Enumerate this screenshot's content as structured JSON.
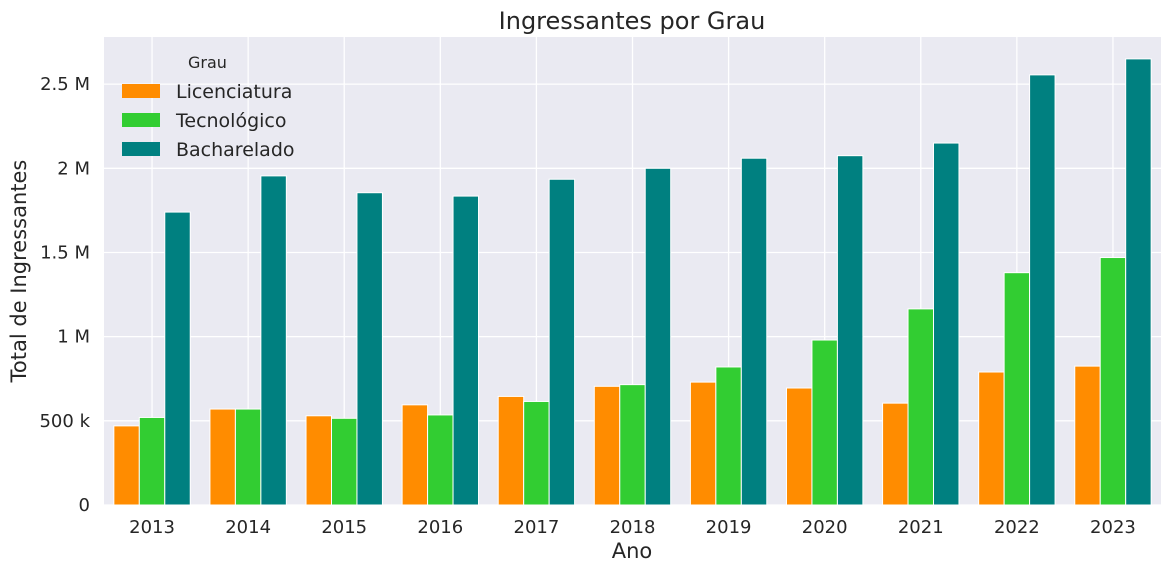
{
  "chart_data": {
    "type": "bar",
    "title": "Ingressantes por Grau",
    "xlabel": "Ano",
    "ylabel": "Total de Ingressantes",
    "categories": [
      "2013",
      "2014",
      "2015",
      "2016",
      "2017",
      "2018",
      "2019",
      "2020",
      "2021",
      "2022",
      "2023"
    ],
    "ylim": [
      0,
      2780000
    ],
    "yticks": [
      0,
      500000,
      1000000,
      1500000,
      2000000,
      2500000
    ],
    "ytick_labels": [
      "0",
      "500 k",
      "1 M",
      "1.5 M",
      "2 M",
      "2.5 M"
    ],
    "grid": true,
    "legend": {
      "title": "Grau",
      "placement": "top-left"
    },
    "series": [
      {
        "name": "Licenciatura",
        "color": "#ff8c00",
        "values": [
          470000,
          570000,
          530000,
          595000,
          645000,
          705000,
          730000,
          695000,
          605000,
          790000,
          825000
        ]
      },
      {
        "name": "Tecnológico",
        "color": "#32cd32",
        "values": [
          520000,
          570000,
          515000,
          535000,
          615000,
          715000,
          820000,
          980000,
          1165000,
          1380000,
          1470000
        ]
      },
      {
        "name": "Bacharelado",
        "color": "#008080",
        "values": [
          1740000,
          1955000,
          1855000,
          1835000,
          1935000,
          2000000,
          2060000,
          2075000,
          2150000,
          2555000,
          2650000
        ]
      }
    ]
  }
}
